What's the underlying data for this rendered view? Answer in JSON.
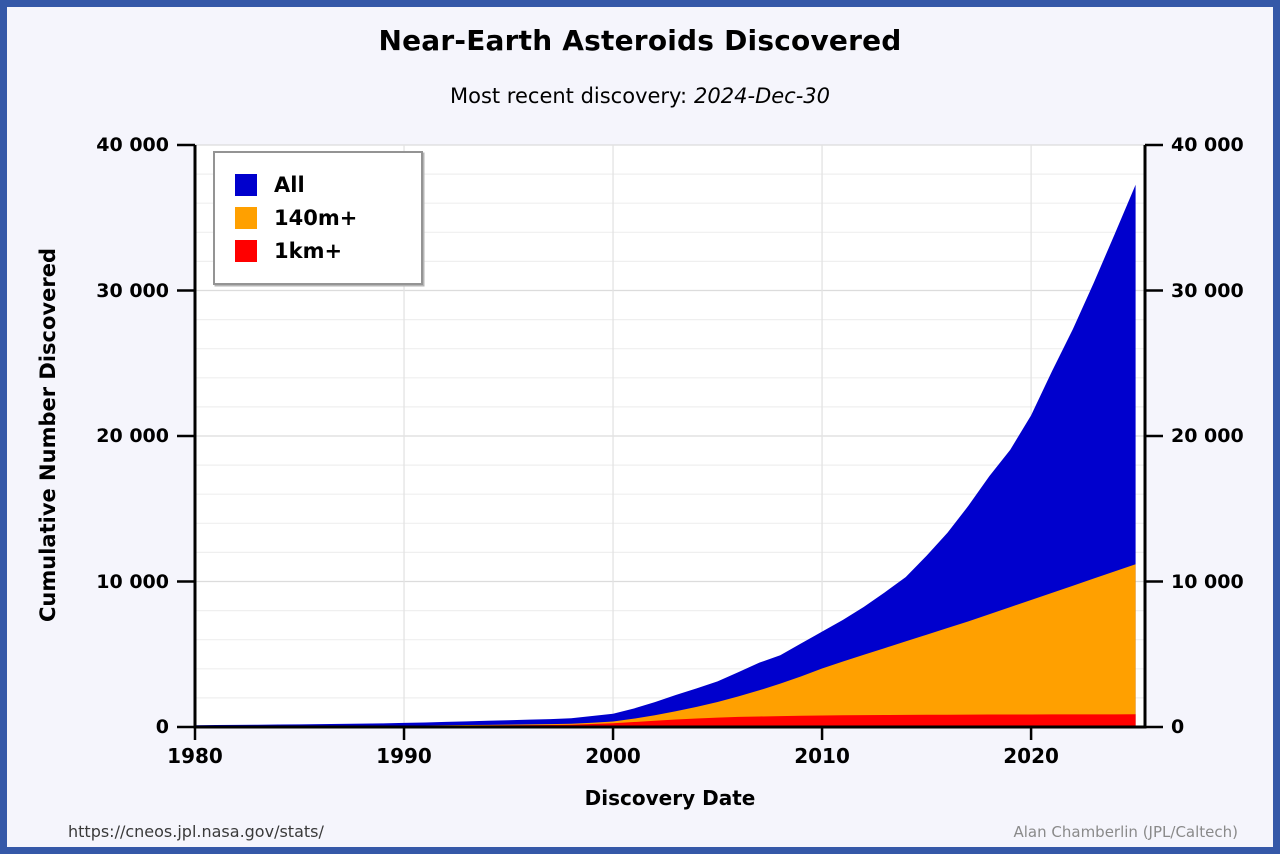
{
  "page": {
    "title": "Near-Earth Asteroids Discovered",
    "subtitle_prefix": "Most recent discovery:",
    "subtitle_date": "2024-Dec-30",
    "footer_left": "https://cneos.jpl.nasa.gov/stats/",
    "footer_right": "Alan Chamberlin (JPL/Caltech)",
    "border_color": "#3558a8",
    "background_color": "#f5f5fc"
  },
  "chart_data": {
    "type": "area",
    "title": "Near-Earth Asteroids Discovered",
    "subtitle": "Most recent discovery: 2024-Dec-30",
    "xlabel": "Discovery Date",
    "ylabel": "Cumulative Number Discovered",
    "xlim": [
      1980,
      2025.45
    ],
    "ylim": [
      0,
      40000
    ],
    "x_ticks": [
      1980,
      1990,
      2000,
      2010,
      2020
    ],
    "y_ticks": [
      0,
      10000,
      20000,
      30000,
      40000
    ],
    "y_tick_labels": [
      "0",
      "10 000",
      "20 000",
      "30 000",
      "40 000"
    ],
    "grid": {
      "h_minor_step": 2000,
      "h_major_step": 10000,
      "v_lines_at_decades": true
    },
    "legend_position": "top-left",
    "axis_color": "#000000",
    "plot_background": "#ffffff",
    "years": [
      1980,
      1981,
      1982,
      1983,
      1984,
      1985,
      1986,
      1987,
      1988,
      1989,
      1990,
      1991,
      1992,
      1993,
      1994,
      1995,
      1996,
      1997,
      1998,
      1999,
      2000,
      2001,
      2002,
      2003,
      2004,
      2005,
      2006,
      2007,
      2008,
      2009,
      2010,
      2011,
      2012,
      2013,
      2014,
      2015,
      2016,
      2017,
      2018,
      2019,
      2020,
      2021,
      2022,
      2023,
      2024,
      2025
    ],
    "series": [
      {
        "name": "All",
        "color": "#0000cd",
        "values": [
          120,
          134,
          145,
          157,
          170,
          183,
          197,
          212,
          230,
          250,
          280,
          313,
          354,
          390,
          428,
          465,
          503,
          542,
          598,
          752,
          912,
          1272,
          1708,
          2198,
          2652,
          3138,
          3772,
          4424,
          4934,
          5748,
          6552,
          7364,
          8254,
          9252,
          10304,
          11772,
          13348,
          15202,
          17232,
          19044,
          21418,
          24452,
          27344,
          30532,
          33878,
          37272
        ]
      },
      {
        "name": "140m+",
        "color": "#ffa000",
        "values": [
          30,
          34,
          38,
          43,
          48,
          54,
          61,
          68,
          76,
          85,
          95,
          107,
          120,
          134,
          149,
          165,
          182,
          200,
          222,
          292,
          382,
          572,
          812,
          1082,
          1382,
          1722,
          2102,
          2522,
          2982,
          3482,
          4022,
          4502,
          4962,
          5422,
          5882,
          6342,
          6802,
          7262,
          7752,
          8242,
          8732,
          9222,
          9712,
          10202,
          10692,
          11182
        ]
      },
      {
        "name": "1km+",
        "color": "#ff0000",
        "values": [
          30,
          33,
          36,
          40,
          44,
          48,
          53,
          58,
          64,
          70,
          77,
          85,
          93,
          102,
          111,
          120,
          130,
          141,
          156,
          202,
          262,
          342,
          432,
          512,
          582,
          642,
          692,
          722,
          747,
          772,
          792,
          806,
          816,
          826,
          833,
          839,
          845,
          851,
          855,
          859,
          862,
          865,
          867,
          869,
          871,
          873
        ]
      }
    ]
  }
}
